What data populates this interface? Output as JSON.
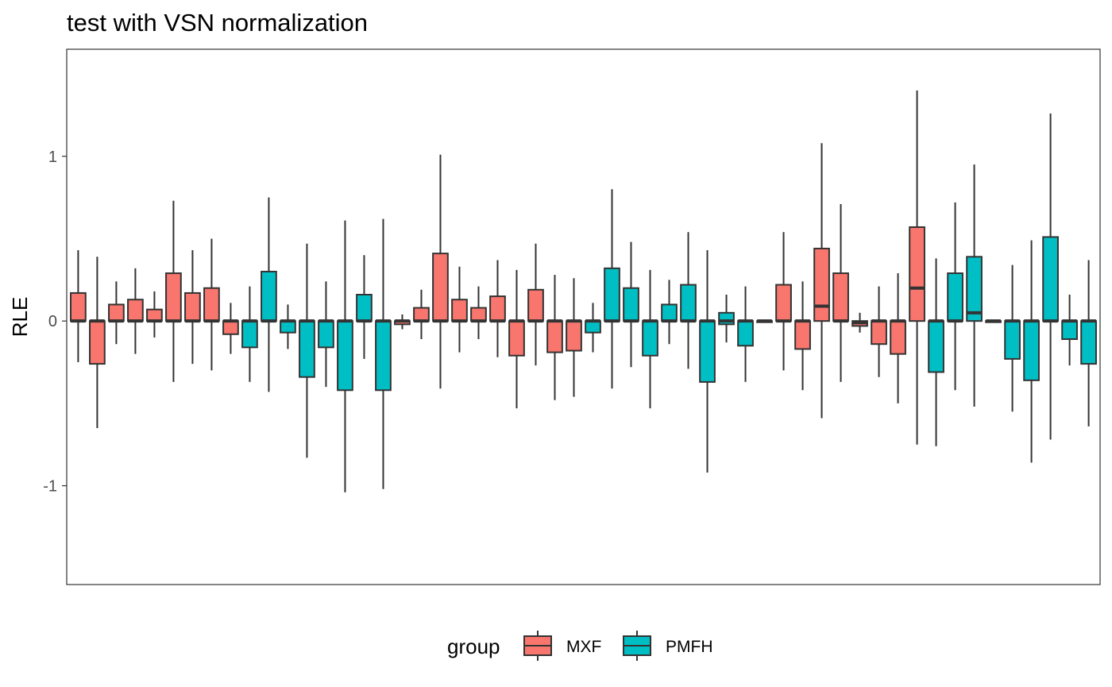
{
  "chart_data": {
    "type": "boxplot",
    "title": "test with VSN normalization",
    "xlabel": "",
    "ylabel": "RLE",
    "ylim": [
      -1.6,
      1.65
    ],
    "yticks": [
      -1,
      0,
      1
    ],
    "ytick_labels": [
      "-1",
      "0",
      "1"
    ],
    "grid": false,
    "legend": {
      "title": "group",
      "position": "bottom",
      "entries": [
        {
          "label": "MXF",
          "color": "#F8766D"
        },
        {
          "label": "PMFH",
          "color": "#00BFC4"
        }
      ]
    },
    "colors": {
      "MXF": "#F8766D",
      "PMFH": "#00BFC4",
      "outline": "#333333"
    },
    "boxes": [
      {
        "group": "MXF",
        "whisker_low": -0.25,
        "q1": 0.0,
        "median": 0.0,
        "q3": 0.17,
        "whisker_high": 0.43
      },
      {
        "group": "MXF",
        "whisker_low": -0.65,
        "q1": -0.26,
        "median": 0.0,
        "q3": 0.0,
        "whisker_high": 0.39
      },
      {
        "group": "MXF",
        "whisker_low": -0.14,
        "q1": 0.0,
        "median": 0.0,
        "q3": 0.1,
        "whisker_high": 0.24
      },
      {
        "group": "MXF",
        "whisker_low": -0.2,
        "q1": 0.0,
        "median": 0.0,
        "q3": 0.13,
        "whisker_high": 0.32
      },
      {
        "group": "MXF",
        "whisker_low": -0.1,
        "q1": 0.0,
        "median": 0.0,
        "q3": 0.07,
        "whisker_high": 0.18
      },
      {
        "group": "MXF",
        "whisker_low": -0.37,
        "q1": 0.0,
        "median": 0.0,
        "q3": 0.29,
        "whisker_high": 0.73
      },
      {
        "group": "MXF",
        "whisker_low": -0.26,
        "q1": 0.0,
        "median": 0.0,
        "q3": 0.17,
        "whisker_high": 0.43
      },
      {
        "group": "MXF",
        "whisker_low": -0.3,
        "q1": 0.0,
        "median": 0.0,
        "q3": 0.2,
        "whisker_high": 0.5
      },
      {
        "group": "MXF",
        "whisker_low": -0.2,
        "q1": -0.08,
        "median": 0.0,
        "q3": 0.0,
        "whisker_high": 0.11
      },
      {
        "group": "PMFH",
        "whisker_low": -0.37,
        "q1": -0.16,
        "median": 0.0,
        "q3": 0.0,
        "whisker_high": 0.21
      },
      {
        "group": "PMFH",
        "whisker_low": -0.43,
        "q1": 0.0,
        "median": 0.0,
        "q3": 0.3,
        "whisker_high": 0.75
      },
      {
        "group": "PMFH",
        "whisker_low": -0.17,
        "q1": -0.07,
        "median": 0.0,
        "q3": 0.0,
        "whisker_high": 0.1
      },
      {
        "group": "PMFH",
        "whisker_low": -0.83,
        "q1": -0.34,
        "median": 0.0,
        "q3": 0.0,
        "whisker_high": 0.47
      },
      {
        "group": "PMFH",
        "whisker_low": -0.4,
        "q1": -0.16,
        "median": 0.0,
        "q3": 0.0,
        "whisker_high": 0.24
      },
      {
        "group": "PMFH",
        "whisker_low": -1.04,
        "q1": -0.42,
        "median": 0.0,
        "q3": 0.0,
        "whisker_high": 0.61
      },
      {
        "group": "PMFH",
        "whisker_low": -0.23,
        "q1": 0.0,
        "median": 0.0,
        "q3": 0.16,
        "whisker_high": 0.4
      },
      {
        "group": "PMFH",
        "whisker_low": -1.02,
        "q1": -0.42,
        "median": 0.0,
        "q3": 0.0,
        "whisker_high": 0.62
      },
      {
        "group": "MXF",
        "whisker_low": -0.05,
        "q1": -0.02,
        "median": 0.0,
        "q3": 0.0,
        "whisker_high": 0.04
      },
      {
        "group": "MXF",
        "whisker_low": -0.11,
        "q1": 0.0,
        "median": 0.0,
        "q3": 0.08,
        "whisker_high": 0.19
      },
      {
        "group": "MXF",
        "whisker_low": -0.41,
        "q1": 0.0,
        "median": 0.0,
        "q3": 0.41,
        "whisker_high": 1.01
      },
      {
        "group": "MXF",
        "whisker_low": -0.19,
        "q1": 0.0,
        "median": 0.0,
        "q3": 0.13,
        "whisker_high": 0.33
      },
      {
        "group": "MXF",
        "whisker_low": -0.11,
        "q1": 0.0,
        "median": 0.0,
        "q3": 0.08,
        "whisker_high": 0.21
      },
      {
        "group": "MXF",
        "whisker_low": -0.22,
        "q1": 0.0,
        "median": 0.0,
        "q3": 0.15,
        "whisker_high": 0.37
      },
      {
        "group": "MXF",
        "whisker_low": -0.53,
        "q1": -0.21,
        "median": 0.0,
        "q3": 0.0,
        "whisker_high": 0.31
      },
      {
        "group": "MXF",
        "whisker_low": -0.27,
        "q1": 0.0,
        "median": 0.0,
        "q3": 0.19,
        "whisker_high": 0.47
      },
      {
        "group": "MXF",
        "whisker_low": -0.48,
        "q1": -0.19,
        "median": 0.0,
        "q3": 0.0,
        "whisker_high": 0.28
      },
      {
        "group": "MXF",
        "whisker_low": -0.46,
        "q1": -0.18,
        "median": 0.0,
        "q3": 0.0,
        "whisker_high": 0.26
      },
      {
        "group": "PMFH",
        "whisker_low": -0.19,
        "q1": -0.07,
        "median": 0.0,
        "q3": 0.0,
        "whisker_high": 0.11
      },
      {
        "group": "PMFH",
        "whisker_low": -0.41,
        "q1": 0.0,
        "median": 0.0,
        "q3": 0.32,
        "whisker_high": 0.8
      },
      {
        "group": "PMFH",
        "whisker_low": -0.28,
        "q1": 0.0,
        "median": 0.0,
        "q3": 0.2,
        "whisker_high": 0.48
      },
      {
        "group": "PMFH",
        "whisker_low": -0.53,
        "q1": -0.21,
        "median": 0.0,
        "q3": 0.0,
        "whisker_high": 0.31
      },
      {
        "group": "PMFH",
        "whisker_low": -0.14,
        "q1": 0.0,
        "median": 0.0,
        "q3": 0.1,
        "whisker_high": 0.25
      },
      {
        "group": "PMFH",
        "whisker_low": -0.29,
        "q1": 0.0,
        "median": 0.0,
        "q3": 0.22,
        "whisker_high": 0.54
      },
      {
        "group": "PMFH",
        "whisker_low": -0.92,
        "q1": -0.37,
        "median": 0.0,
        "q3": 0.0,
        "whisker_high": 0.43
      },
      {
        "group": "PMFH",
        "whisker_low": -0.13,
        "q1": -0.02,
        "median": 0.0,
        "q3": 0.05,
        "whisker_high": 0.16
      },
      {
        "group": "PMFH",
        "whisker_low": -0.37,
        "q1": -0.15,
        "median": 0.0,
        "q3": 0.0,
        "whisker_high": 0.21
      },
      {
        "group": "PMFH",
        "whisker_low": 0.0,
        "q1": 0.0,
        "median": 0.0,
        "q3": 0.0,
        "whisker_high": 0.0
      },
      {
        "group": "MXF",
        "whisker_low": -0.3,
        "q1": 0.0,
        "median": 0.0,
        "q3": 0.22,
        "whisker_high": 0.54
      },
      {
        "group": "MXF",
        "whisker_low": -0.42,
        "q1": -0.17,
        "median": 0.0,
        "q3": 0.0,
        "whisker_high": 0.24
      },
      {
        "group": "MXF",
        "whisker_low": -0.59,
        "q1": 0.0,
        "median": 0.09,
        "q3": 0.44,
        "whisker_high": 1.08
      },
      {
        "group": "MXF",
        "whisker_low": -0.37,
        "q1": 0.0,
        "median": 0.0,
        "q3": 0.29,
        "whisker_high": 0.71
      },
      {
        "group": "MXF",
        "whisker_low": -0.07,
        "q1": -0.03,
        "median": -0.01,
        "q3": 0.0,
        "whisker_high": 0.05
      },
      {
        "group": "MXF",
        "whisker_low": -0.34,
        "q1": -0.14,
        "median": 0.0,
        "q3": 0.0,
        "whisker_high": 0.21
      },
      {
        "group": "MXF",
        "whisker_low": -0.5,
        "q1": -0.2,
        "median": 0.0,
        "q3": 0.0,
        "whisker_high": 0.29
      },
      {
        "group": "MXF",
        "whisker_low": -0.75,
        "q1": 0.0,
        "median": 0.2,
        "q3": 0.57,
        "whisker_high": 1.4
      },
      {
        "group": "PMFH",
        "whisker_low": -0.76,
        "q1": -0.31,
        "median": 0.0,
        "q3": 0.0,
        "whisker_high": 0.38
      },
      {
        "group": "PMFH",
        "whisker_low": -0.42,
        "q1": 0.0,
        "median": 0.0,
        "q3": 0.29,
        "whisker_high": 0.72
      },
      {
        "group": "PMFH",
        "whisker_low": -0.52,
        "q1": 0.0,
        "median": 0.05,
        "q3": 0.39,
        "whisker_high": 0.95
      },
      {
        "group": "PMFH",
        "whisker_low": 0.0,
        "q1": 0.0,
        "median": 0.0,
        "q3": 0.0,
        "whisker_high": 0.0
      },
      {
        "group": "PMFH",
        "whisker_low": -0.55,
        "q1": -0.23,
        "median": 0.0,
        "q3": 0.0,
        "whisker_high": 0.34
      },
      {
        "group": "PMFH",
        "whisker_low": -0.86,
        "q1": -0.36,
        "median": 0.0,
        "q3": 0.0,
        "whisker_high": 0.49
      },
      {
        "group": "PMFH",
        "whisker_low": -0.72,
        "q1": 0.0,
        "median": 0.0,
        "q3": 0.51,
        "whisker_high": 1.26
      },
      {
        "group": "PMFH",
        "whisker_low": -0.27,
        "q1": -0.11,
        "median": 0.0,
        "q3": 0.0,
        "whisker_high": 0.16
      },
      {
        "group": "PMFH",
        "whisker_low": -0.64,
        "q1": -0.26,
        "median": 0.0,
        "q3": 0.0,
        "whisker_high": 0.37
      }
    ]
  }
}
